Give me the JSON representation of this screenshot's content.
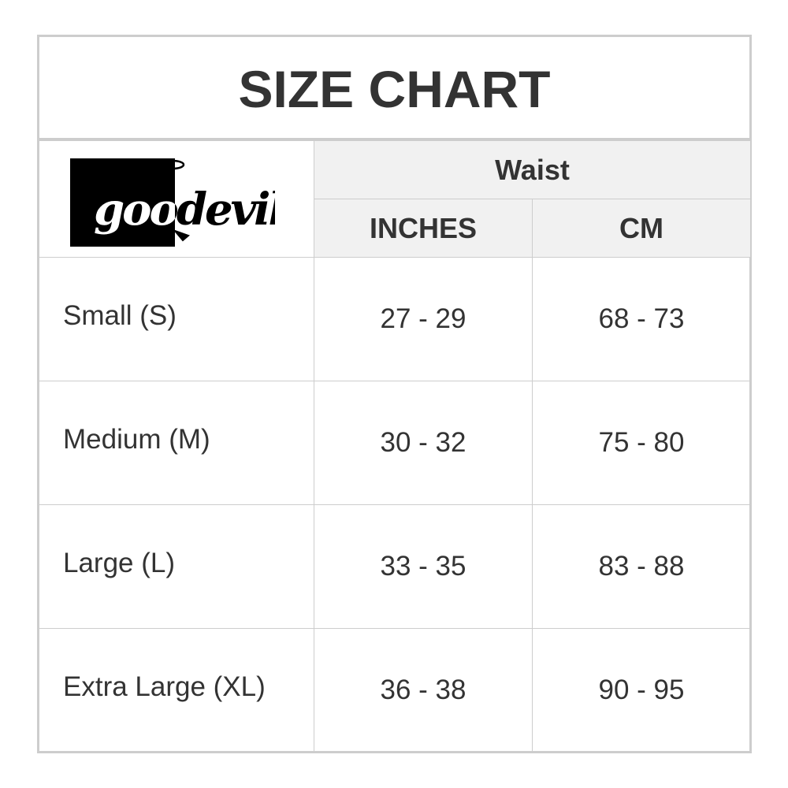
{
  "title": "SIZE CHART",
  "brand": "goodevil",
  "header": {
    "group": "Waist",
    "columns": [
      "INCHES",
      "CM"
    ]
  },
  "rows": [
    {
      "size": "Small (S)",
      "inches": "27 - 29",
      "cm": "68 - 73"
    },
    {
      "size": "Medium (M)",
      "inches": "30 - 32",
      "cm": "75 - 80"
    },
    {
      "size": "Large (L)",
      "inches": "33 - 35",
      "cm": "83 - 88"
    },
    {
      "size": "Extra Large (XL)",
      "inches": "36 - 38",
      "cm": "90 - 95"
    }
  ]
}
